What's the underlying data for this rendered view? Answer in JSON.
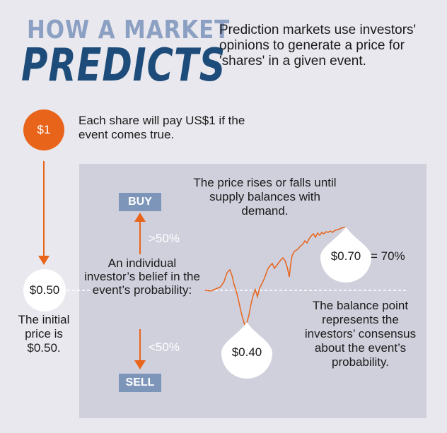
{
  "header": {
    "title_top": "HOW A MARKET",
    "title_main": "PREDICTS",
    "intro": "Prediction markets use investors' opinions to generate a price for 'shares' in a given event."
  },
  "payout": {
    "coin_label": "$1",
    "text": "Each share will pay US$1 if the event comes true."
  },
  "initial": {
    "coin_label": "$0.50",
    "text": "The initial price is $0.50."
  },
  "panel": {
    "buy_label": "BUY",
    "sell_label": "SELL",
    "above_label": ">50%",
    "below_label": "<50%",
    "belief_text": "An individual investor’s belief in the event’s probability:",
    "rises_text": "The price rises or falls until supply balances with demand.",
    "balance_text": "The balance point represents the investors’ consensus about the event’s probability.",
    "low_drop_label": "$0.40",
    "high_drop_label": "$0.70",
    "equals_label": "= 70%"
  },
  "colors": {
    "orange": "#e8641b",
    "navy": "#1e4c7a",
    "light_blue": "#8ba0c2",
    "badge_blue": "#7e95ba",
    "panel": "#cfd0dc",
    "background": "#e9e8ee"
  },
  "price_line": {
    "start": 0.5,
    "low": 0.4,
    "end": 0.7
  }
}
